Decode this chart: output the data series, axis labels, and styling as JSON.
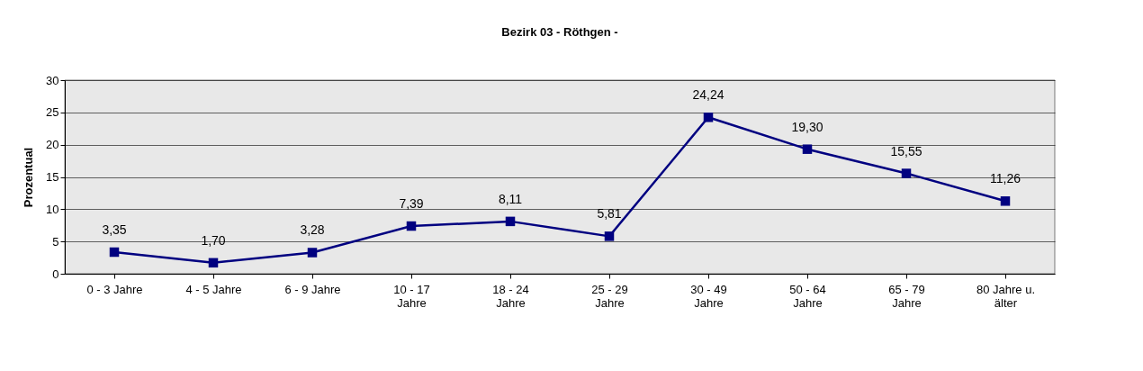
{
  "chart_data": {
    "type": "line",
    "title": "Bezirk 03 - Röthgen -",
    "ylabel": "Prozentual",
    "categories": [
      "0 - 3 Jahre",
      "4 - 5 Jahre",
      "6 - 9 Jahre",
      "10 - 17 Jahre",
      "18 - 24 Jahre",
      "25 - 29 Jahre",
      "30 - 49 Jahre",
      "50 - 64 Jahre",
      "65 - 79 Jahre",
      "80 Jahre u. älter"
    ],
    "series": [
      {
        "color": "#000080",
        "values": [
          3.35,
          1.7,
          3.28,
          7.39,
          8.11,
          5.81,
          24.24,
          19.3,
          15.55,
          11.26
        ],
        "value_labels": [
          "3,35",
          "1,70",
          "3,28",
          "7,39",
          "8,11",
          "5,81",
          "24,24",
          "19,30",
          "15,55",
          "11,26"
        ]
      }
    ],
    "ylim": [
      0,
      30
    ],
    "yticks": [
      0,
      5,
      10,
      15,
      20,
      25,
      30
    ],
    "grid": "y",
    "marker": "square",
    "line_style": "solid"
  }
}
